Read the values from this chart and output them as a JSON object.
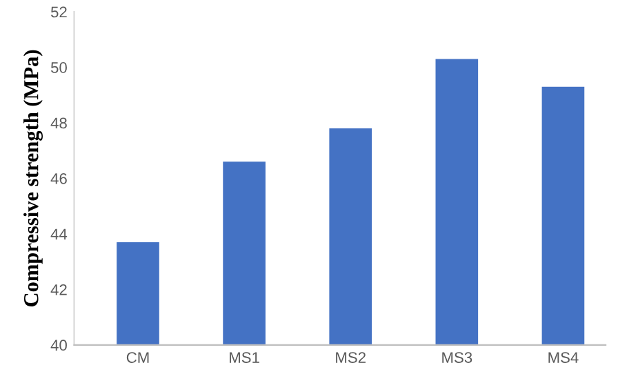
{
  "chart_data": {
    "type": "bar",
    "ylabel": "Compressive strength (MPa)",
    "categories": [
      "CM",
      "MS1",
      "MS2",
      "MS3",
      "MS4"
    ],
    "values": [
      43.7,
      46.6,
      47.8,
      50.3,
      49.3
    ],
    "color": "#4472c4",
    "ylim": [
      40,
      52
    ],
    "yticks": [
      40,
      42,
      44,
      46,
      48,
      50,
      52
    ],
    "grid": false
  }
}
